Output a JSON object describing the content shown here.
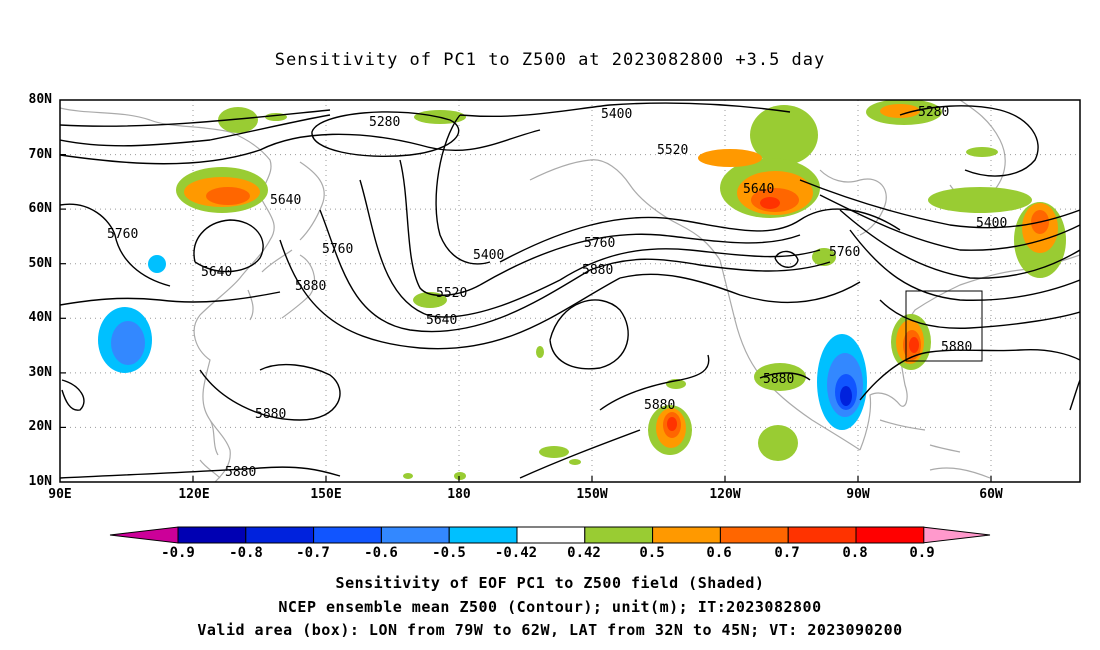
{
  "title": "Sensitivity of PC1 to Z500 at 2023082800 +3.5 day",
  "map": {
    "lat_labels": [
      "80N",
      "70N",
      "60N",
      "50N",
      "40N",
      "30N",
      "20N",
      "10N"
    ],
    "lon_labels": [
      "90E",
      "120E",
      "150E",
      "180",
      "150W",
      "120W",
      "90W",
      "60W"
    ],
    "contour_labels": [
      {
        "text": "5280"
      },
      {
        "text": "5400"
      },
      {
        "text": "5280"
      },
      {
        "text": "5520"
      },
      {
        "text": "5640"
      },
      {
        "text": "5640"
      },
      {
        "text": "5760"
      },
      {
        "text": "5400"
      },
      {
        "text": "5640"
      },
      {
        "text": "5760"
      },
      {
        "text": "5760"
      },
      {
        "text": "5760"
      },
      {
        "text": "5880"
      },
      {
        "text": "5880"
      },
      {
        "text": "5520"
      },
      {
        "text": "5640"
      },
      {
        "text": "5400"
      },
      {
        "text": "5880"
      },
      {
        "text": "5880"
      },
      {
        "text": "5880"
      },
      {
        "text": "5880"
      },
      {
        "text": "5880"
      }
    ],
    "valid_box": {
      "lon_from": "79W",
      "lon_to": "62W",
      "lat_from": "32N",
      "lat_to": "45N"
    }
  },
  "colorbar": {
    "labels": [
      "-0.9",
      "-0.8",
      "-0.7",
      "-0.6",
      "-0.5",
      "-0.42",
      "0.42",
      "0.5",
      "0.6",
      "0.7",
      "0.8",
      "0.9"
    ],
    "colors": [
      "#cc0099",
      "#0000b3",
      "#0022dd",
      "#1155ff",
      "#3388ff",
      "#00c0ff",
      "#ffffff",
      "#99cc33",
      "#ff9900",
      "#ff6600",
      "#ff3300",
      "#ff0000",
      "#ff99cc"
    ]
  },
  "captions": {
    "line1": "Sensitivity of EOF PC1 to Z500 field (Shaded)",
    "line2": "NCEP ensemble mean Z500 (Contour); unit(m); IT:2023082800",
    "line3": "Valid area (box): LON from 79W to 62W, LAT from 32N to 45N; VT: 2023090200"
  }
}
